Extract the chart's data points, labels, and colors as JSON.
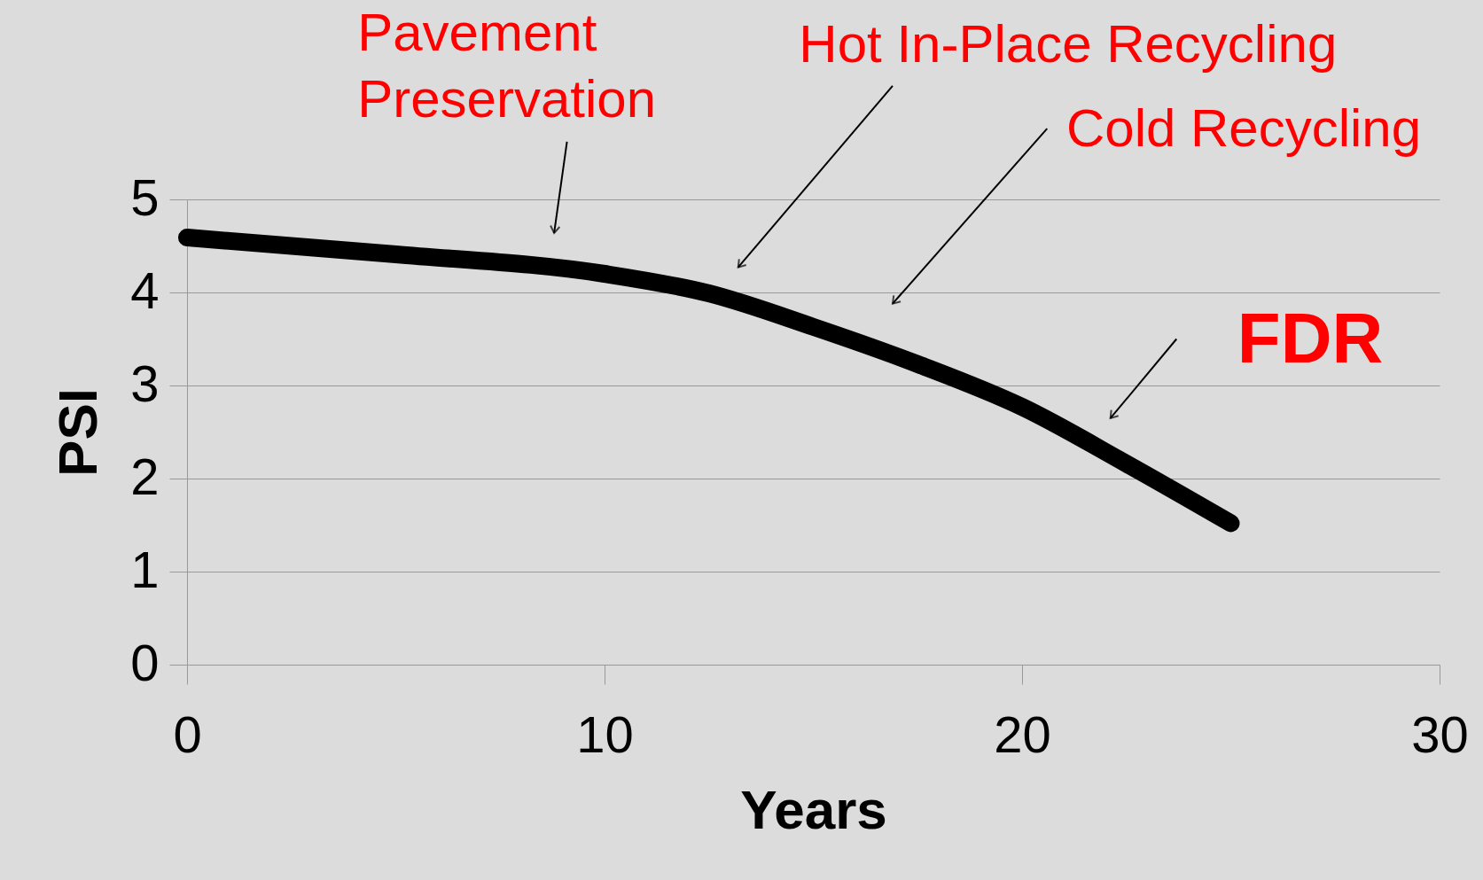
{
  "chart_data": {
    "type": "line",
    "xlabel": "Years",
    "ylabel": "PSI",
    "xlim": [
      0,
      30
    ],
    "xticks": [
      0,
      10,
      20,
      30
    ],
    "ylim": [
      0,
      5
    ],
    "yticks": [
      0,
      1,
      2,
      3,
      4,
      5
    ],
    "grid": "y",
    "line_style": "solid",
    "series": [
      {
        "color": "#000000",
        "x": [
          0,
          5,
          10,
          12.5,
          15,
          17.5,
          20,
          22.5,
          25
        ],
        "values": [
          4.59,
          4.41,
          4.2,
          3.99,
          3.63,
          3.23,
          2.77,
          2.16,
          1.52
        ]
      }
    ],
    "annotations": [
      {
        "text": "Pavement\nPreservation",
        "x": 8.68,
        "y": 4.28
      },
      "Hot In-Place Recycling",
      "Cold  Recycling",
      {
        "text": "FDR",
        "x": 21.6,
        "y": 2.37
      }
    ]
  }
}
